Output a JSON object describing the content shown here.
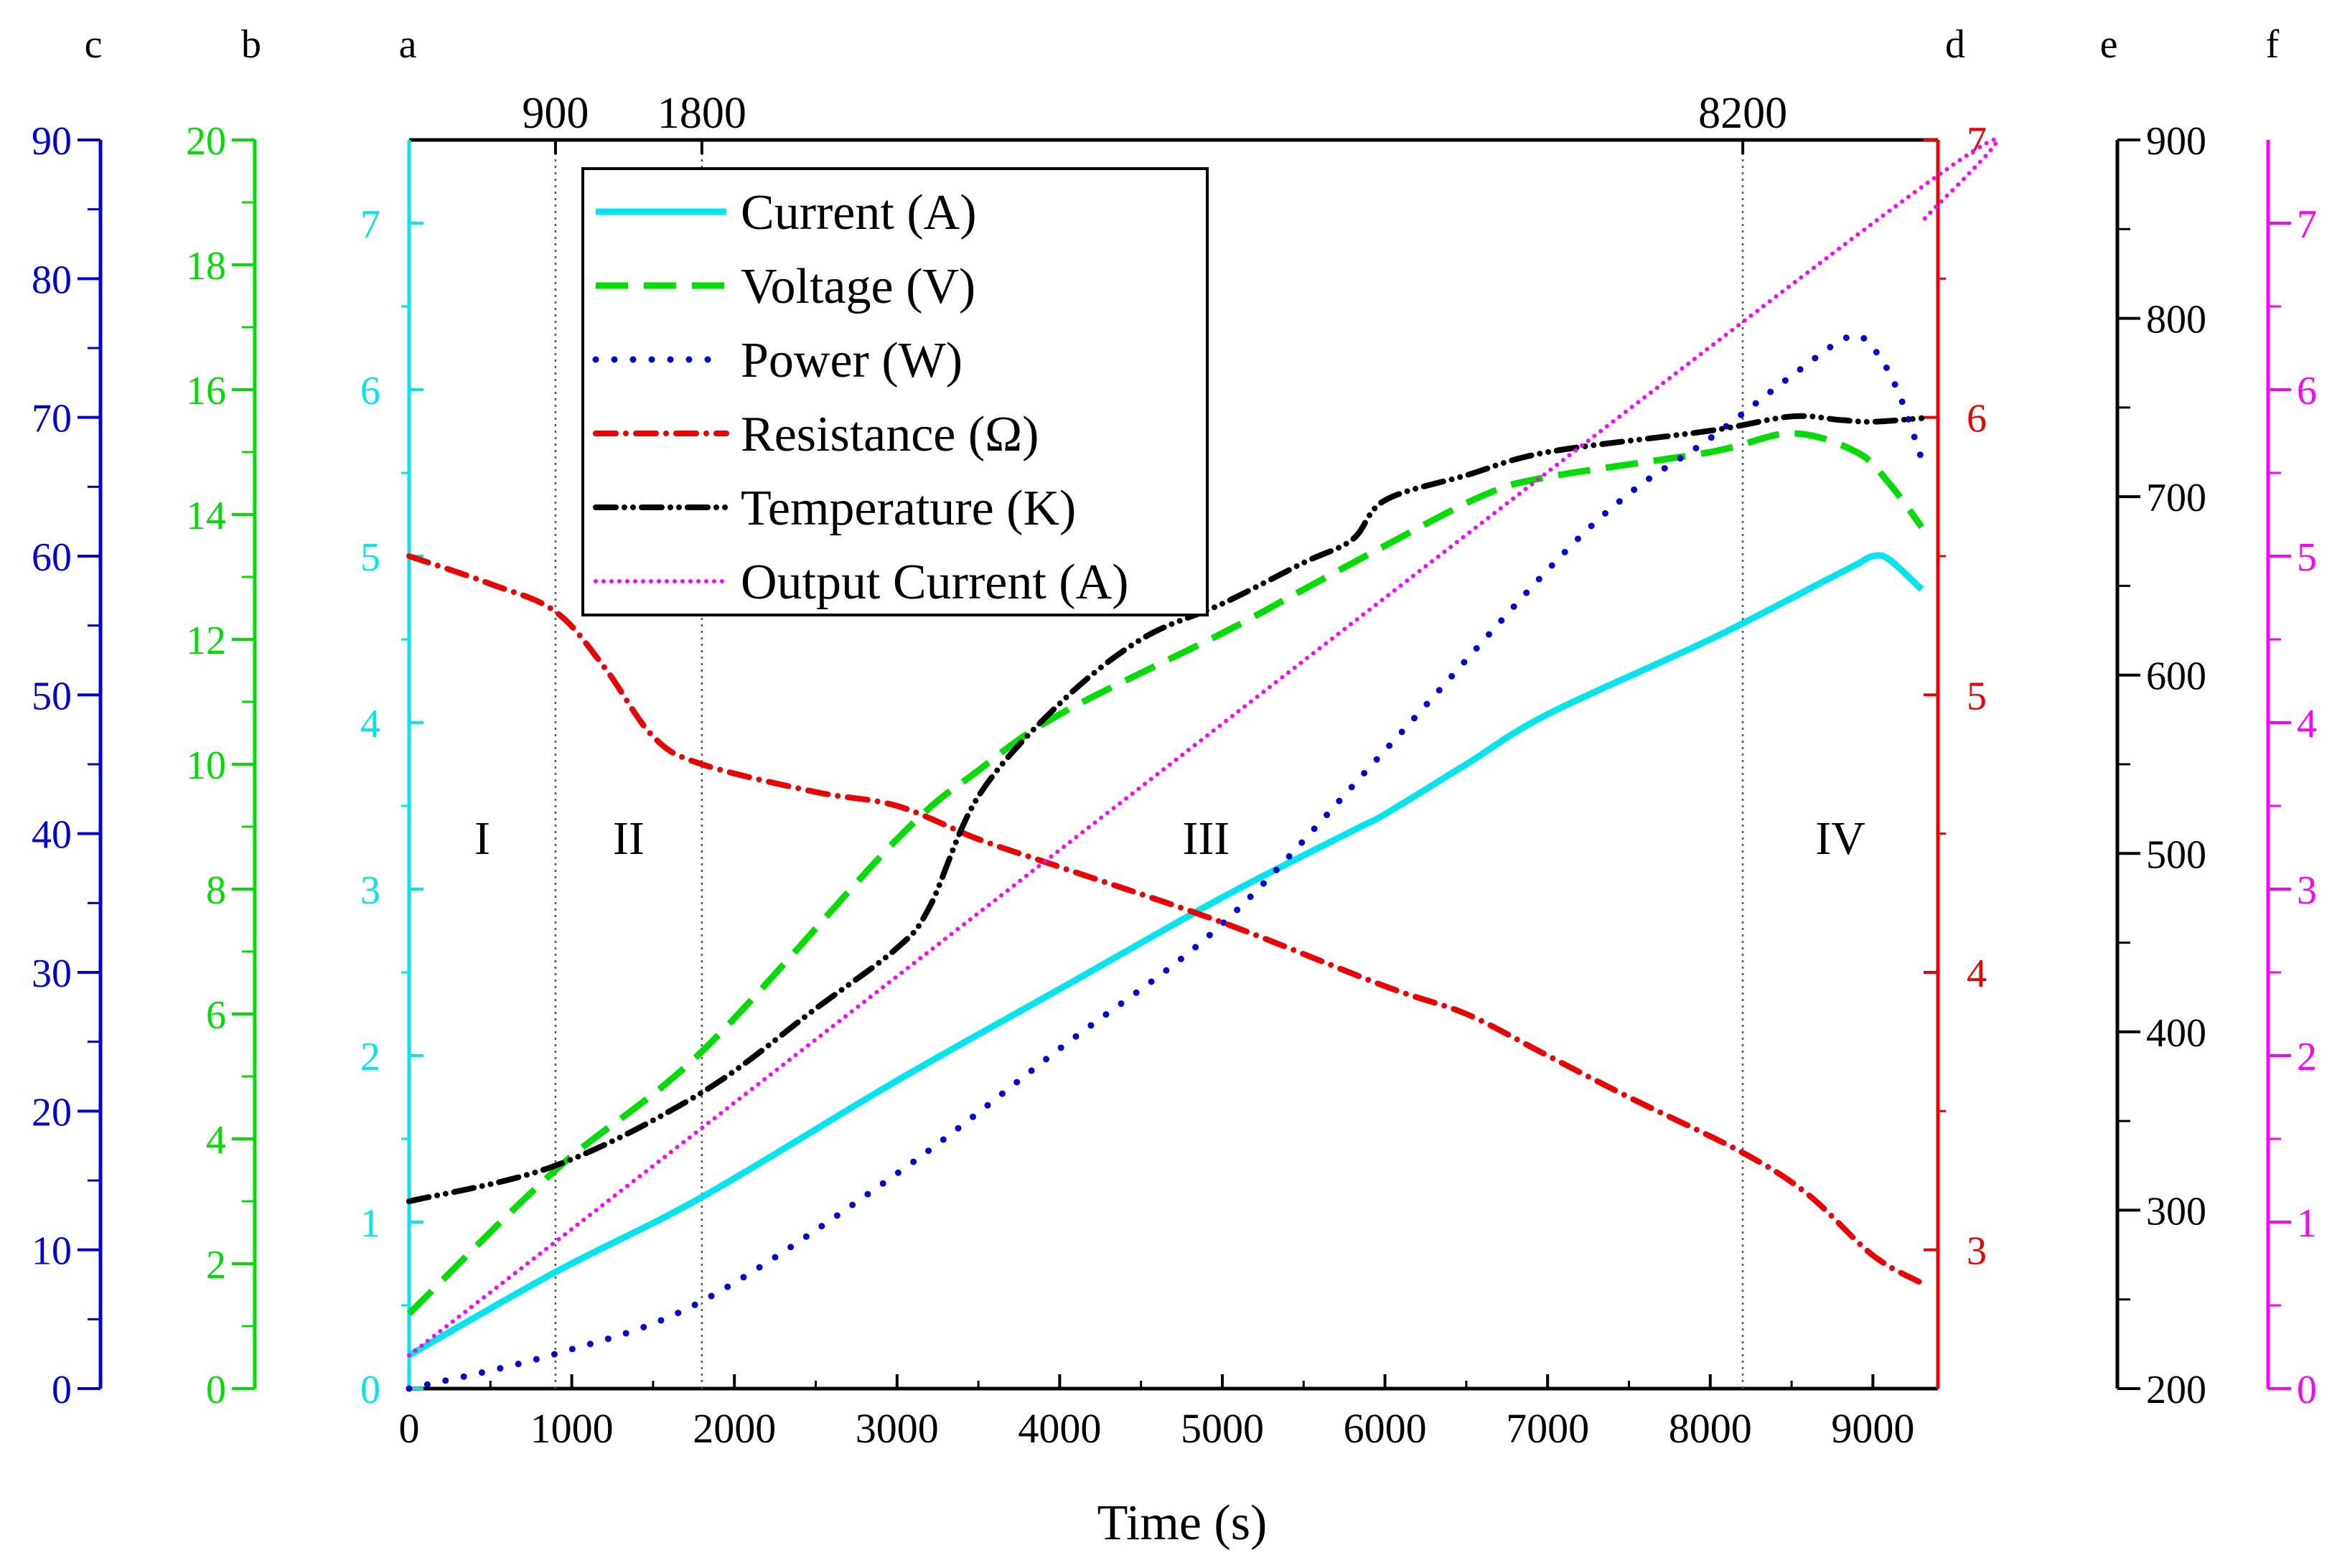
{
  "chart_data": {
    "type": "line",
    "xlabel": "Time (s)",
    "xlim": [
      0,
      9400
    ],
    "x_ticks": [
      0,
      1000,
      2000,
      3000,
      4000,
      5000,
      6000,
      7000,
      8000,
      9000
    ],
    "top_ticks": [
      900,
      1800,
      8200
    ],
    "regions": [
      {
        "label": "I",
        "x": 450
      },
      {
        "label": "II",
        "x": 1350
      },
      {
        "label": "III",
        "x": 4900
      },
      {
        "label": "IV",
        "x": 8800
      }
    ],
    "axes": [
      {
        "id": "a",
        "name": "Current (A)",
        "color": "#00e5ee",
        "range": [
          0,
          7.5
        ],
        "ticks": [
          0,
          1,
          2,
          3,
          4,
          5,
          6,
          7
        ]
      },
      {
        "id": "b",
        "name": "Voltage (V)",
        "color": "#00dd00",
        "range": [
          0,
          20
        ],
        "ticks": [
          0,
          2,
          4,
          6,
          8,
          10,
          12,
          14,
          16,
          18,
          20
        ]
      },
      {
        "id": "c",
        "name": "Power (W)",
        "color": "#0000dd",
        "range": [
          0,
          90
        ],
        "ticks": [
          0,
          10,
          20,
          30,
          40,
          50,
          60,
          70,
          80,
          90
        ]
      },
      {
        "id": "d",
        "name": "Resistance (Ω)",
        "color": "#ee0000",
        "range": [
          2.5,
          7
        ],
        "ticks": [
          3,
          4,
          5,
          6,
          7
        ]
      },
      {
        "id": "e",
        "name": "Temperature (K)",
        "color": "#000000",
        "range": [
          200,
          900
        ],
        "ticks": [
          200,
          300,
          400,
          500,
          600,
          700,
          800,
          900
        ]
      },
      {
        "id": "f",
        "name": "Output Current (A)",
        "color": "#ff00ff",
        "range": [
          0,
          7.5
        ],
        "ticks": [
          0,
          1,
          2,
          3,
          4,
          5,
          6,
          7
        ]
      }
    ],
    "series": [
      {
        "name": "Current (A)",
        "axis": "a",
        "color": "#00e5ee",
        "dash": "solid",
        "x": [
          0,
          900,
          1800,
          3000,
          4000,
          5000,
          5800,
          6000,
          6500,
          7000,
          8000,
          8700,
          8900,
          9000,
          9100,
          9300
        ],
        "y": [
          0.2,
          0.7,
          1.15,
          1.85,
          2.4,
          2.95,
          3.35,
          3.45,
          3.75,
          4.05,
          4.5,
          4.85,
          4.95,
          5.0,
          4.98,
          4.8
        ]
      },
      {
        "name": "Voltage (V)",
        "axis": "b",
        "color": "#00dd00",
        "dash": "longdash",
        "x": [
          0,
          900,
          1800,
          3000,
          3500,
          4000,
          5000,
          5500,
          6000,
          6600,
          7000,
          8000,
          8500,
          8900,
          9100,
          9300
        ],
        "y": [
          1.2,
          3.5,
          5.4,
          8.8,
          9.9,
          10.8,
          12.1,
          12.8,
          13.5,
          14.3,
          14.6,
          15.0,
          15.3,
          15.0,
          14.5,
          13.8
        ]
      },
      {
        "name": "Power (W)",
        "axis": "c",
        "color": "#0000dd",
        "dash": "dot",
        "x": [
          0,
          900,
          1800,
          3000,
          4000,
          5000,
          6000,
          7000,
          7500,
          8000,
          8500,
          8850,
          9000,
          9150,
          9300
        ],
        "y": [
          0,
          2.5,
          6.3,
          15.5,
          24.5,
          33.5,
          46.0,
          59.0,
          64.5,
          68.5,
          73.0,
          75.8,
          75.0,
          72.0,
          67.0
        ]
      },
      {
        "name": "Resistance (Ω)",
        "axis": "d",
        "color": "#ee0000",
        "dash": "dashdot",
        "x": [
          0,
          500,
          900,
          1200,
          1500,
          1800,
          2500,
          3000,
          3500,
          4000,
          5000,
          6000,
          6500,
          7000,
          7500,
          8200,
          8600,
          9000,
          9300
        ],
        "y": [
          5.5,
          5.4,
          5.3,
          5.1,
          4.85,
          4.75,
          4.65,
          4.6,
          4.48,
          4.38,
          4.18,
          3.95,
          3.85,
          3.7,
          3.55,
          3.35,
          3.2,
          2.98,
          2.88
        ]
      },
      {
        "name": "Temperature (K)",
        "axis": "e",
        "color": "#000000",
        "dash": "dashdotdot",
        "x": [
          0,
          900,
          1800,
          2500,
          3000,
          3200,
          3500,
          4000,
          4500,
          5000,
          5500,
          5800,
          6000,
          6500,
          7000,
          8000,
          8500,
          8800,
          9000,
          9300
        ],
        "y": [
          305,
          325,
          366,
          413,
          447,
          470,
          532,
          584,
          620,
          640,
          663,
          676,
          698,
          712,
          725,
          737,
          745,
          743,
          742,
          744
        ]
      },
      {
        "name": "Output Current (A)",
        "axis": "f",
        "color": "#ff00ff",
        "dash": "finedot",
        "x": [
          0,
          9000,
          9300
        ],
        "y": [
          0.2,
          7.0,
          7.0
        ]
      }
    ]
  }
}
